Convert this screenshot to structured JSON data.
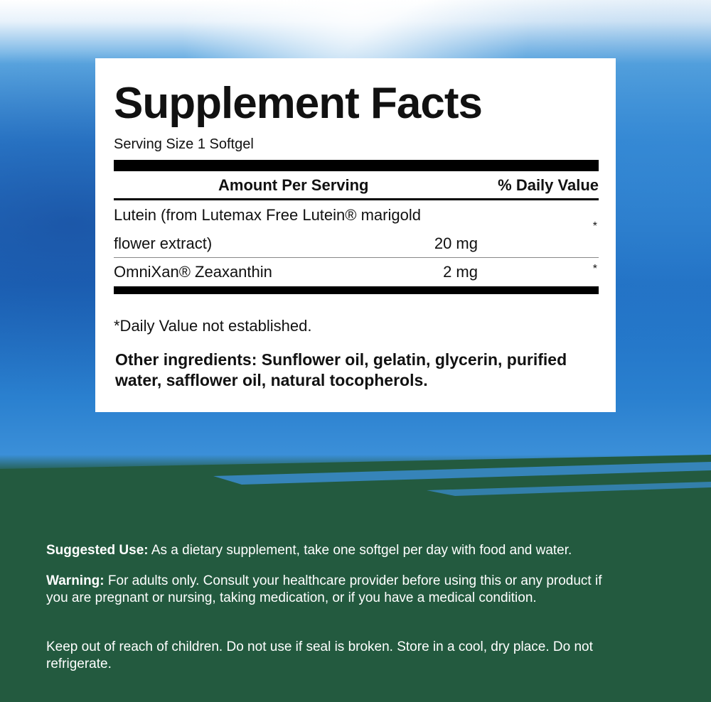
{
  "label": {
    "title": "Supplement Facts",
    "serving_size": "Serving Size 1 Softgel",
    "header_amount": "Amount Per Serving",
    "header_dv": "% Daily Value",
    "rows": [
      {
        "name_line1": "Lutein (from Lutemax Free Lutein® marigold",
        "name_line2": "flower extract)",
        "amount": "20 mg",
        "dv": "*"
      },
      {
        "name_line1": "OmniXan® Zeaxanthin",
        "amount": "2 mg",
        "dv": "*"
      }
    ],
    "footnote": "*Daily Value not established.",
    "other_ingredients": "Other ingredients: Sunflower oil, gelatin, glycerin, purified water, safflower oil, natural tocopherols."
  },
  "info": {
    "suggested_use_label": "Suggested Use:",
    "suggested_use_text": " As a dietary supplement, take one softgel per day with food and water.",
    "warning_label": "Warning:",
    "warning_text": " For adults only. Consult your healthcare provider before using this or any product if you are pregnant or nursing, taking medication, or if you have a medical condition.",
    "storage": "Keep out of reach of children. Do not use if seal is broken. Store in a cool, dry place. Do not refrigerate."
  },
  "colors": {
    "green": "#235a3f",
    "blue": "#1f6fc4"
  }
}
